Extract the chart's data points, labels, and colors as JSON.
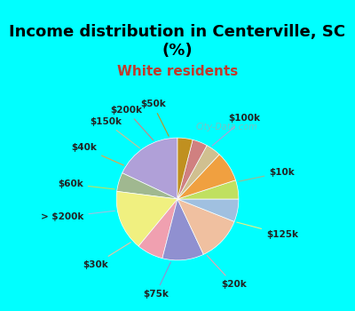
{
  "title": "Income distribution in Centerville, SC\n(%)",
  "subtitle": "White residents",
  "title_color": "#000000",
  "subtitle_color": "#c0392b",
  "background_top": "#00ffff",
  "background_chart": "#e8f5e9",
  "watermark": "City-Data.com",
  "labels": [
    "$100k",
    "$10k",
    "$125k",
    "$20k",
    "$75k",
    "$30k",
    "> $200k",
    "$60k",
    "$40k",
    "$150k",
    "$200k",
    "$50k"
  ],
  "values": [
    18,
    5,
    16,
    7,
    11,
    12,
    6,
    5,
    8,
    4,
    4,
    4
  ],
  "colors": [
    "#b0a0d8",
    "#a0b890",
    "#f0f080",
    "#f0a0b0",
    "#9090d0",
    "#f0c0a0",
    "#a0c0e0",
    "#c0e060",
    "#f0a040",
    "#d0c090",
    "#d08080",
    "#c09020"
  ],
  "label_fontsize": 8,
  "figsize": [
    4.0,
    3.5
  ],
  "dpi": 100
}
